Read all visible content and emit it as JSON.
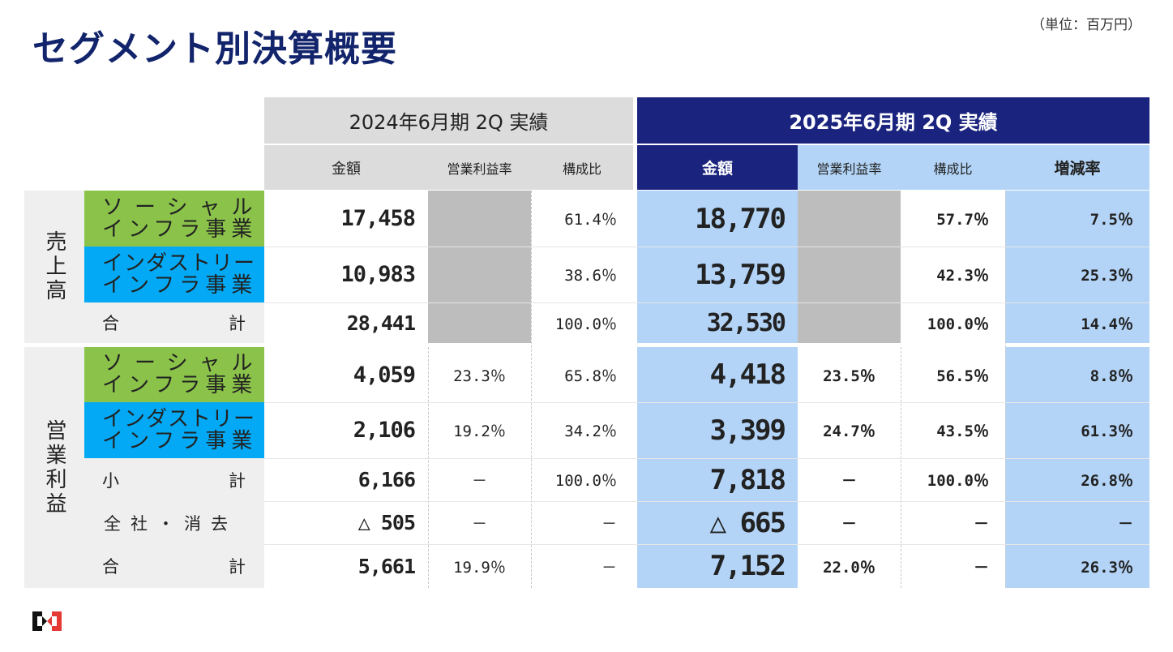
{
  "title": "セグメント別決算概要",
  "unit": "（単位：百万円）",
  "headers": {
    "period_prev": "2024年6月期 2Q 実績",
    "period_curr": "2025年6月期 2Q 実績",
    "amount": "金額",
    "op_margin": "営業利益率",
    "composition": "構成比",
    "growth": "増減率"
  },
  "groups": {
    "sales": "売上高",
    "operating_profit": "営業利益"
  },
  "labels": {
    "social_1": "ソーシャル",
    "social_2": "インフラ事業",
    "industry_1": "インダストリー",
    "industry_2": "インフラ事業",
    "total_a": "合",
    "total_b": "計",
    "subtotal_a": "小",
    "subtotal_b": "計",
    "elim": "全社・消去"
  },
  "rows": [
    {
      "prev_amount": "17,458",
      "prev_margin": "",
      "prev_comp": "61.4％",
      "curr_amount": "18,770",
      "curr_margin": "",
      "curr_comp": "57.7％",
      "growth": "7.5％"
    },
    {
      "prev_amount": "10,983",
      "prev_margin": "",
      "prev_comp": "38.6％",
      "curr_amount": "13,759",
      "curr_margin": "",
      "curr_comp": "42.3％",
      "growth": "25.3％"
    },
    {
      "prev_amount": "28,441",
      "prev_margin": "",
      "prev_comp": "100.0％",
      "curr_amount": "32,530",
      "curr_margin": "",
      "curr_comp": "100.0％",
      "growth": "14.4％"
    },
    {
      "prev_amount": "4,059",
      "prev_margin": "23.3％",
      "prev_comp": "65.8％",
      "curr_amount": "4,418",
      "curr_margin": "23.5％",
      "curr_comp": "56.5％",
      "growth": "8.8％"
    },
    {
      "prev_amount": "2,106",
      "prev_margin": "19.2％",
      "prev_comp": "34.2％",
      "curr_amount": "3,399",
      "curr_margin": "24.7％",
      "curr_comp": "43.5％",
      "growth": "61.3％"
    },
    {
      "prev_amount": "6,166",
      "prev_margin": "－",
      "prev_comp": "100.0％",
      "curr_amount": "7,818",
      "curr_margin": "－",
      "curr_comp": "100.0％",
      "growth": "26.8％"
    },
    {
      "prev_amount": "△ 505",
      "prev_margin": "－",
      "prev_comp": "－",
      "curr_amount": "△ 665",
      "curr_margin": "－",
      "curr_comp": "－",
      "growth": "－"
    },
    {
      "prev_amount": "5,661",
      "prev_margin": "19.9％",
      "prev_comp": "－",
      "curr_amount": "7,152",
      "curr_margin": "22.0％",
      "curr_comp": "－",
      "growth": "26.3％"
    }
  ],
  "colors": {
    "title": "#12246b",
    "navy_header": "#1a237e",
    "light_blue": "#b3d4f7",
    "green_segment": "#8bc34a",
    "cyan_segment": "#03a9f4",
    "gray_header": "#dcdcdc",
    "masked_cell": "#bdbdbd",
    "logo_red": "#e53935"
  }
}
